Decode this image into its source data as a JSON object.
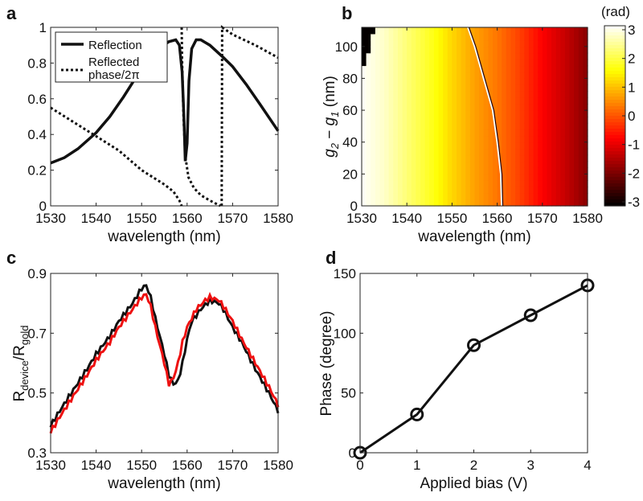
{
  "panels": [
    "a",
    "b",
    "c",
    "d"
  ],
  "chart_data": [
    {
      "id": "a",
      "type": "line",
      "xlabel": "wavelength (nm)",
      "ylabel": "",
      "xlim": [
        1530,
        1580
      ],
      "ylim": [
        0,
        1
      ],
      "xticks": [
        1530,
        1540,
        1550,
        1560,
        1570,
        1580
      ],
      "yticks": [
        0,
        0.2,
        0.4,
        0.6,
        0.8,
        1
      ],
      "yticklabels": [
        "0",
        "0.2",
        "0.4",
        "0.6",
        "0.8",
        "1"
      ],
      "legend": {
        "position": "top-left",
        "entries": [
          "Reflection",
          "Reflected",
          "phase/2π"
        ]
      },
      "series": [
        {
          "name": "Reflection",
          "style": "solid",
          "x": [
            1530,
            1533,
            1536,
            1540,
            1543,
            1546,
            1550,
            1553,
            1556,
            1557.5,
            1558.3,
            1558.9,
            1559.3,
            1559.6,
            1560,
            1560.4,
            1561,
            1562,
            1563,
            1565,
            1568,
            1570,
            1573,
            1576,
            1580
          ],
          "y": [
            0.24,
            0.27,
            0.32,
            0.41,
            0.5,
            0.61,
            0.77,
            0.87,
            0.92,
            0.93,
            0.9,
            0.75,
            0.5,
            0.25,
            0.35,
            0.7,
            0.88,
            0.93,
            0.93,
            0.9,
            0.83,
            0.78,
            0.68,
            0.57,
            0.42
          ]
        },
        {
          "name": "Reflected phase/2π",
          "style": "dotted",
          "segments": [
            {
              "x": [
                1530,
                1535,
                1540,
                1545,
                1550,
                1555,
                1557,
                1558.3,
                1558.8
              ],
              "y": [
                0.55,
                0.47,
                0.39,
                0.31,
                0.2,
                0.12,
                0.08,
                0.03,
                0
              ]
            },
            {
              "x": [
                1558.8,
                1558.9,
                1559.2,
                1559.6,
                1560.3,
                1561.5,
                1563,
                1565,
                1567.3
              ],
              "y": [
                1,
                0.8,
                0.5,
                0.28,
                0.16,
                0.1,
                0.06,
                0.03,
                0
              ]
            },
            {
              "x": [
                1567.6,
                1567.7,
                1570,
                1575,
                1580
              ],
              "y": [
                0,
                1,
                0.96,
                0.9,
                0.83
              ]
            }
          ]
        }
      ]
    },
    {
      "id": "b",
      "type": "heatmap",
      "xlabel": "wavelength (nm)",
      "ylabel": {
        "g": "g",
        "sub2": "2",
        "minus": " − g",
        "sub1": "1",
        "unit": " (nm)"
      },
      "xlim": [
        1530,
        1580
      ],
      "ylim": [
        0,
        112
      ],
      "xticks": [
        1530,
        1540,
        1550,
        1560,
        1570,
        1580
      ],
      "yticks": [
        0,
        20,
        40,
        60,
        80,
        100
      ],
      "colorbar": {
        "label": "(rad)",
        "range": [
          -3.14,
          3.14
        ],
        "ticks": [
          3,
          2,
          1,
          0,
          -1,
          -2,
          -3
        ],
        "ticklabels": [
          "3",
          "2",
          "1",
          "0",
          "-1",
          "-2",
          "-3"
        ],
        "colormap": "hot"
      },
      "phase_profile": {
        "wavelength": [
          1530,
          1535,
          1540,
          1545,
          1550,
          1555,
          1560,
          1565,
          1570,
          1575,
          1580
        ],
        "phase": [
          3.1,
          2.8,
          2.3,
          1.8,
          1.2,
          0.7,
          0.3,
          -0.2,
          -0.8,
          -1.3,
          -1.9
        ]
      },
      "phase_jump_boundary": {
        "g": [
          0,
          20,
          40,
          60,
          80,
          100,
          112
        ],
        "wavelength": [
          1561,
          1560.8,
          1560,
          1559,
          1557,
          1555,
          1553.5
        ]
      },
      "wrap_region": {
        "g": [
          85,
          100,
          112
        ],
        "wavelength_max": [
          1530,
          1532,
          1533
        ]
      }
    },
    {
      "id": "c",
      "type": "line",
      "xlabel": "wavelength (nm)",
      "ylabel": {
        "r1": "R",
        "sub1": "device",
        "r2": "/R",
        "sub2": "gold"
      },
      "xlim": [
        1530,
        1580
      ],
      "ylim": [
        0.3,
        0.9
      ],
      "xticks": [
        1530,
        1540,
        1550,
        1560,
        1570,
        1580
      ],
      "yticks": [
        0.3,
        0.5,
        0.7,
        0.9
      ],
      "yticklabels": [
        "0.3",
        "0.5",
        "0.7",
        "0.9"
      ],
      "series": [
        {
          "name": "black",
          "color": "#111111",
          "x": [
            1530,
            1532,
            1535,
            1538,
            1540,
            1543,
            1545,
            1548,
            1550,
            1551,
            1552,
            1553,
            1554,
            1555,
            1556,
            1557,
            1558,
            1559,
            1560,
            1561,
            1563,
            1565,
            1567,
            1568,
            1570,
            1572,
            1575,
            1578,
            1580
          ],
          "y": [
            0.39,
            0.44,
            0.51,
            0.58,
            0.63,
            0.69,
            0.74,
            0.8,
            0.85,
            0.86,
            0.82,
            0.75,
            0.69,
            0.63,
            0.56,
            0.53,
            0.54,
            0.6,
            0.68,
            0.74,
            0.78,
            0.81,
            0.8,
            0.78,
            0.72,
            0.67,
            0.58,
            0.5,
            0.44
          ]
        },
        {
          "name": "red",
          "color": "#ee1111",
          "x": [
            1530,
            1532,
            1535,
            1538,
            1540,
            1543,
            1545,
            1548,
            1550,
            1551,
            1552,
            1553,
            1554,
            1555,
            1556,
            1557,
            1558,
            1559,
            1560,
            1562,
            1564,
            1565,
            1567,
            1568,
            1570,
            1572,
            1575,
            1578,
            1580
          ],
          "y": [
            0.37,
            0.42,
            0.49,
            0.56,
            0.61,
            0.67,
            0.72,
            0.78,
            0.82,
            0.83,
            0.79,
            0.72,
            0.66,
            0.6,
            0.53,
            0.55,
            0.6,
            0.67,
            0.72,
            0.78,
            0.81,
            0.82,
            0.81,
            0.79,
            0.74,
            0.68,
            0.6,
            0.52,
            0.46
          ]
        }
      ]
    },
    {
      "id": "d",
      "type": "line",
      "xlabel": "Applied bias (V)",
      "ylabel": "Phase (degree)",
      "xlim": [
        0,
        4
      ],
      "ylim": [
        0,
        150
      ],
      "xticks": [
        0,
        1,
        2,
        3,
        4
      ],
      "yticks": [
        0,
        50,
        100,
        150
      ],
      "x": [
        0,
        1,
        2,
        3,
        4
      ],
      "y": [
        0,
        32,
        90,
        115,
        140
      ],
      "marker": "circle"
    }
  ]
}
